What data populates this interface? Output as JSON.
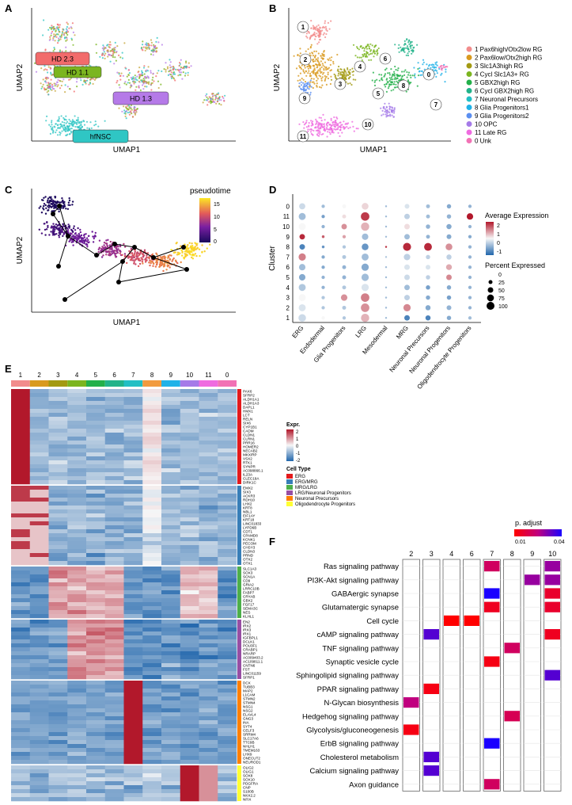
{
  "panel_letters": {
    "a": "A",
    "b": "B",
    "c": "C",
    "d": "D",
    "e": "E",
    "f": "F"
  },
  "panel_a": {
    "x_label": "UMAP1",
    "y_label": "UMAP2",
    "labels": [
      {
        "text": "HD 2.3",
        "color": "#f26b6b"
      },
      {
        "text": "HD 1.1",
        "color": "#7bb51f"
      },
      {
        "text": "HD 1.3",
        "color": "#b57ae8"
      },
      {
        "text": "hfNSC",
        "color": "#2fc6c4"
      }
    ]
  },
  "panel_b": {
    "x_label": "UMAP1",
    "y_label": "UMAP2",
    "cluster_numbers": [
      "1",
      "2",
      "3",
      "4",
      "5",
      "6",
      "7",
      "8",
      "9",
      "10",
      "11",
      "0"
    ],
    "legend": [
      {
        "label": "1 Pax6high/Otx2low RG",
        "color": "#f28c8c"
      },
      {
        "label": "2 Pax6low/Otx2high RG",
        "color": "#d99a1f"
      },
      {
        "label": "3 Slc1A3high RG",
        "color": "#a39a12"
      },
      {
        "label": "4 Cycl Slc1A3+ RG",
        "color": "#7bb51f"
      },
      {
        "label": "5 GBX2high RG",
        "color": "#23b04a"
      },
      {
        "label": "6 Cycl GBX2high RG",
        "color": "#22b38a"
      },
      {
        "label": "7 Neuronal Precursors",
        "color": "#22bfc4"
      },
      {
        "label": "8 Glia Progenitors1",
        "color": "#1fb2e8"
      },
      {
        "label": "9 Glia Progenitors2",
        "color": "#5b8ff0"
      },
      {
        "label": "10 OPC",
        "color": "#a57ae8"
      },
      {
        "label": "11 Late RG",
        "color": "#ef6be0"
      },
      {
        "label": "0 Unk",
        "color": "#f272b5"
      }
    ]
  },
  "panel_c": {
    "x_label": "UMAP1",
    "y_label": "UMAP2",
    "legend_title": "pseudotime",
    "legend_ticks": [
      "15",
      "10",
      "5",
      "0"
    ]
  },
  "panel_d": {
    "y_label": "Cluster",
    "legend_expr_title": "Average Expression",
    "legend_expr_ticks": [
      "2",
      "1",
      "0",
      "-1"
    ],
    "legend_pct_title": "Percent Expressed",
    "legend_pct_ticks": [
      "0",
      "25",
      "50",
      "75",
      "100"
    ]
  },
  "panel_e": {
    "legend_expr_title": "Expr.",
    "legend_expr_ticks": [
      "2",
      "1",
      "0",
      "-1",
      "-2"
    ],
    "legend_celltype_title": "Cell Type",
    "cell_types": [
      {
        "label": "ERG",
        "color": "#e41a1c"
      },
      {
        "label": "ERG/MRG",
        "color": "#377eb8"
      },
      {
        "label": "MRG/LRG",
        "color": "#4daf4a"
      },
      {
        "label": "LRG/Neuronal Progenitors",
        "color": "#984ea3"
      },
      {
        "label": "Neuronal Precursors",
        "color": "#ff7f00"
      },
      {
        "label": "Oligodendrocyte Progenitors",
        "color": "#ffff33"
      }
    ],
    "gene_groups": [
      {
        "type": 0,
        "genes": [
          "PAX6",
          "SFRP2",
          "ALDH1A1",
          "ALDH1A3",
          "DAPL1",
          "HMX1",
          "LCT",
          "RELN",
          "SIX6",
          "CYP1B1",
          "CADM",
          "CLDN1",
          "CLRN1",
          "PRR16",
          "HOMER2",
          "NECAB2",
          "MKX/RP",
          "VSX2",
          "RTK1",
          "SYNPR",
          "AC098866.1",
          "IL23A",
          "CLEC19A",
          "DIRK1C"
        ]
      },
      {
        "type": 1,
        "genes": [
          "EMX2",
          "SIX3",
          "ACKR3",
          "RDH10",
          "LHX2",
          "KRT8",
          "NBL1",
          "EIF1AY",
          "KRT18",
          "LINC01833",
          "LYPD6B",
          "CDT1",
          "CPAMD8",
          "KCNK1",
          "PECOM",
          "CHSY3",
          "CLDN3",
          "PRND",
          "OTX2",
          "OTX1"
        ]
      },
      {
        "type": 2,
        "genes": [
          "SLC1A3",
          "SOX3",
          "SCN1A",
          "CD9",
          "GRIA2",
          "LRRC10B",
          "FABP7",
          "CRYAB",
          "GBX2",
          "FGF17",
          "SEMA3C",
          "NES",
          "KLHL1"
        ]
      },
      {
        "type": 3,
        "genes": [
          "EN2",
          "IRX2",
          "IRX3",
          "IRX1",
          "IGFBPL1",
          "DCLK1",
          "POU3F1",
          "CRABP1",
          "NRARP",
          "AC009403.2",
          "AC109811.1",
          "CNTN6",
          "FST",
          "LINC01159",
          "SFRP1"
        ]
      },
      {
        "type": 4,
        "genes": [
          "DCX",
          "TUBB3",
          "MAP2",
          "L1CAM",
          "STMN2",
          "STMN4",
          "NSG1",
          "NSG2",
          "ELAVL4",
          "GNG3",
          "INA",
          "SYT4",
          "CELF3",
          "SRRM4",
          "SLC17A6",
          "TTC9B",
          "NHLH1",
          "TMEM163",
          "LHX9",
          "ONECUT2",
          "NEUROD1"
        ]
      },
      {
        "type": 5,
        "genes": [
          "OLIG2",
          "OLIG1",
          "SOX8",
          "SOX10",
          "PDGFRA",
          "CNP",
          "S100B",
          "NKX2.2",
          "NFIX"
        ]
      }
    ]
  },
  "panel_f": {
    "legend_title": "p. adjust",
    "legend_ticks": [
      "0.01",
      "0.04"
    ],
    "pathways": [
      "Ras signaling pathway",
      "PI3K-Akt signaling pathway",
      "GABAergic synapse",
      "Glutamatergic synapse",
      "Cell cycle",
      "cAMP signaling pathway",
      "TNF signaling pathway",
      "Synaptic vesicle cycle",
      "Sphingolipid signaling pathway",
      "PPAR signaling pathway",
      "N-Glycan biosynthesis",
      "Hedgehog signaling pathway",
      "Glycolysis/gluconeogenesis",
      "ErbB signaling pathway",
      "Cholesterol metabolism",
      "Calcium signaling pathway",
      "Axon guidance"
    ],
    "clusters": [
      "2",
      "3",
      "4",
      "6",
      "7",
      "8",
      "9",
      "10"
    ]
  },
  "chart_data": [
    {
      "type": "scatter",
      "title": "Dot plot of cell type marker expression by cluster",
      "ylabel": "Cluster",
      "categories": [
        "ERG",
        "Endodermal",
        "Glia Progenitors",
        "LRG",
        "Mesodermal",
        "MRG",
        "Neuronal Precursors",
        "Neuronal Progenitors",
        "Oligodendrocyte Progenitors"
      ],
      "clusters": [
        "1",
        "2",
        "3",
        "4",
        "5",
        "6",
        "7",
        "8",
        "9",
        "10",
        "11",
        "0"
      ],
      "avg_expression": [
        [
          -0.3,
          0.0,
          -0.5,
          0.8,
          -0.6,
          -1.2,
          -1.2,
          -0.8,
          -0.6
        ],
        [
          -0.2,
          -0.5,
          -0.5,
          1.2,
          -0.6,
          1.3,
          -0.8,
          -0.7,
          -0.7
        ],
        [
          0.0,
          -0.5,
          1.2,
          1.4,
          -0.6,
          -0.4,
          -0.8,
          -0.9,
          -0.7
        ],
        [
          -0.5,
          -0.7,
          -0.5,
          -0.2,
          -0.6,
          -0.6,
          -0.9,
          -0.8,
          -0.7
        ],
        [
          -0.8,
          -0.7,
          -0.7,
          -0.6,
          -0.6,
          -0.3,
          -0.4,
          1.3,
          -0.7
        ],
        [
          -0.6,
          -0.8,
          -0.7,
          -0.8,
          -0.6,
          -0.2,
          -0.2,
          0.9,
          -0.7
        ],
        [
          1.4,
          -0.8,
          -0.5,
          -0.6,
          -0.5,
          -0.4,
          -0.4,
          -0.4,
          -0.7
        ],
        [
          -1.2,
          -1.0,
          -0.5,
          -1.0,
          2.3,
          2.4,
          2.4,
          1.2,
          -0.7
        ],
        [
          2.4,
          1.8,
          1.0,
          -0.6,
          -0.6,
          -0.6,
          -0.7,
          -0.8,
          -0.8
        ],
        [
          0.0,
          -0.7,
          1.2,
          0.8,
          -0.6,
          0.3,
          -0.7,
          -0.8,
          -0.7
        ],
        [
          -0.6,
          -0.9,
          0.3,
          2.2,
          -0.6,
          -0.4,
          -0.6,
          -0.7,
          2.6
        ],
        [
          -0.3,
          -0.6,
          0.0,
          0.4,
          -0.6,
          -0.2,
          -0.6,
          -0.8,
          -0.7
        ]
      ],
      "pct_expressed": [
        [
          75,
          15,
          15,
          90,
          5,
          40,
          35,
          25,
          15
        ],
        [
          65,
          15,
          20,
          95,
          5,
          70,
          35,
          30,
          15
        ],
        [
          65,
          15,
          55,
          95,
          5,
          40,
          25,
          25,
          15
        ],
        [
          65,
          15,
          20,
          70,
          5,
          40,
          25,
          25,
          15
        ],
        [
          55,
          15,
          20,
          70,
          5,
          40,
          25,
          40,
          15
        ],
        [
          55,
          15,
          20,
          70,
          5,
          40,
          30,
          45,
          15
        ],
        [
          70,
          15,
          20,
          65,
          5,
          55,
          25,
          35,
          15
        ],
        [
          40,
          10,
          15,
          60,
          5,
          85,
          80,
          60,
          15
        ],
        [
          40,
          10,
          15,
          55,
          5,
          40,
          20,
          30,
          15
        ],
        [
          65,
          15,
          40,
          90,
          5,
          40,
          25,
          35,
          15
        ],
        [
          65,
          15,
          20,
          95,
          5,
          40,
          20,
          25,
          55
        ],
        [
          50,
          15,
          20,
          60,
          5,
          30,
          20,
          25,
          15
        ]
      ],
      "legend": "right"
    },
    {
      "type": "heatmap",
      "title": "Enriched KEGG pathways per cluster",
      "x_categories": [
        "2",
        "3",
        "4",
        "6",
        "7",
        "8",
        "9",
        "10"
      ],
      "y_categories": [
        "Ras signaling pathway",
        "PI3K-Akt signaling pathway",
        "GABAergic synapse",
        "Glutamatergic synapse",
        "Cell cycle",
        "cAMP signaling pathway",
        "TNF signaling pathway",
        "Synaptic vesicle cycle",
        "Sphingolipid signaling pathway",
        "PPAR signaling pathway",
        "N-Glycan biosynthesis",
        "Hedgehog signaling pathway",
        "Glycolysis/gluconeogenesis",
        "ErbB signaling pathway",
        "Cholesterol metabolism",
        "Calcium signaling pathway",
        "Axon guidance"
      ],
      "cells": [
        {
          "cluster": "7",
          "pathway": "Ras signaling pathway",
          "p_adjust": 0.02
        },
        {
          "cluster": "9",
          "pathway": "PI3K-Akt signaling pathway",
          "p_adjust": 0.03
        },
        {
          "cluster": "10",
          "pathway": "Ras signaling pathway",
          "p_adjust": 0.03
        },
        {
          "cluster": "10",
          "pathway": "PI3K-Akt signaling pathway",
          "p_adjust": 0.03
        },
        {
          "cluster": "7",
          "pathway": "GABAergic synapse",
          "p_adjust": 0.045
        },
        {
          "cluster": "10",
          "pathway": "GABAergic synapse",
          "p_adjust": 0.012
        },
        {
          "cluster": "7",
          "pathway": "Glutamatergic synapse",
          "p_adjust": 0.01
        },
        {
          "cluster": "10",
          "pathway": "Glutamatergic synapse",
          "p_adjust": 0.012
        },
        {
          "cluster": "4",
          "pathway": "Cell cycle",
          "p_adjust": 0.005
        },
        {
          "cluster": "6",
          "pathway": "Cell cycle",
          "p_adjust": 0.005
        },
        {
          "cluster": "3",
          "pathway": "cAMP signaling pathway",
          "p_adjust": 0.038
        },
        {
          "cluster": "10",
          "pathway": "cAMP signaling pathway",
          "p_adjust": 0.01
        },
        {
          "cluster": "8",
          "pathway": "TNF signaling pathway",
          "p_adjust": 0.02
        },
        {
          "cluster": "7",
          "pathway": "Synaptic vesicle cycle",
          "p_adjust": 0.008
        },
        {
          "cluster": "10",
          "pathway": "Sphingolipid signaling pathway",
          "p_adjust": 0.038
        },
        {
          "cluster": "3",
          "pathway": "PPAR signaling pathway",
          "p_adjust": 0.008
        },
        {
          "cluster": "2",
          "pathway": "N-Glycan biosynthesis",
          "p_adjust": 0.025
        },
        {
          "cluster": "8",
          "pathway": "Hedgehog signaling pathway",
          "p_adjust": 0.018
        },
        {
          "cluster": "2",
          "pathway": "Glycolysis/gluconeogenesis",
          "p_adjust": 0.008
        },
        {
          "cluster": "7",
          "pathway": "ErbB signaling pathway",
          "p_adjust": 0.045
        },
        {
          "cluster": "3",
          "pathway": "Cholesterol metabolism",
          "p_adjust": 0.038
        },
        {
          "cluster": "3",
          "pathway": "Calcium signaling pathway",
          "p_adjust": 0.038
        },
        {
          "cluster": "7",
          "pathway": "Axon guidance",
          "p_adjust": 0.02
        }
      ],
      "legend": "top-right"
    }
  ]
}
